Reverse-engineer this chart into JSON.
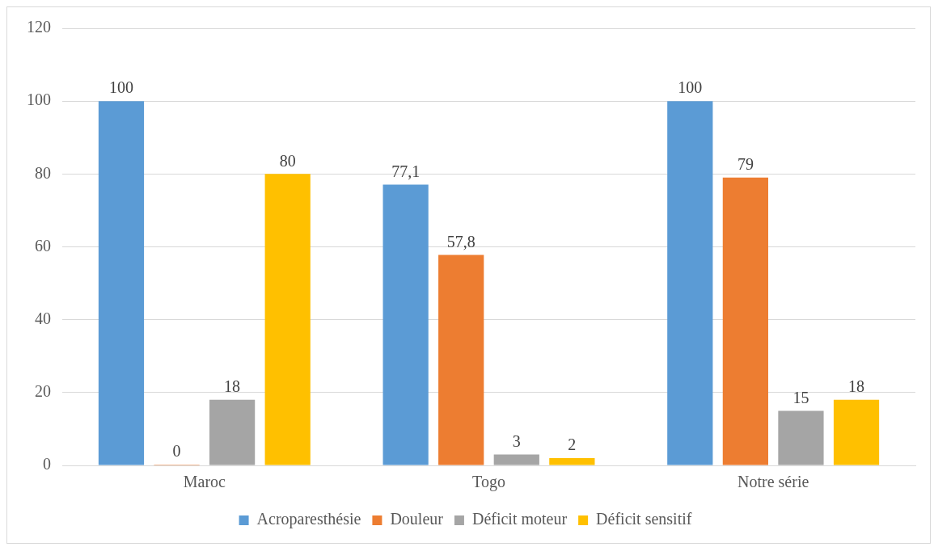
{
  "chart_data": {
    "type": "bar",
    "categories": [
      "Maroc",
      "Togo",
      "Notre série"
    ],
    "series": [
      {
        "name": "Acroparesthésie",
        "color": "#5b9bd5",
        "values": [
          100,
          77.1,
          100
        ],
        "value_labels": [
          "100",
          "77,1",
          "100"
        ]
      },
      {
        "name": "Douleur",
        "color": "#ed7d31",
        "values": [
          0,
          57.8,
          79
        ],
        "value_labels": [
          "0",
          "57,8",
          "79"
        ]
      },
      {
        "name": "Déficit moteur",
        "color": "#a5a5a5",
        "values": [
          18,
          3,
          15
        ],
        "value_labels": [
          "18",
          "3",
          "15"
        ]
      },
      {
        "name": "Déficit sensitif",
        "color": "#ffc000",
        "values": [
          80,
          2,
          18
        ],
        "value_labels": [
          "80",
          "2",
          "18"
        ]
      }
    ],
    "ylim": [
      0,
      120
    ],
    "yticks": [
      0,
      20,
      40,
      60,
      80,
      100,
      120
    ],
    "grid": "y",
    "legend": "bottom"
  }
}
